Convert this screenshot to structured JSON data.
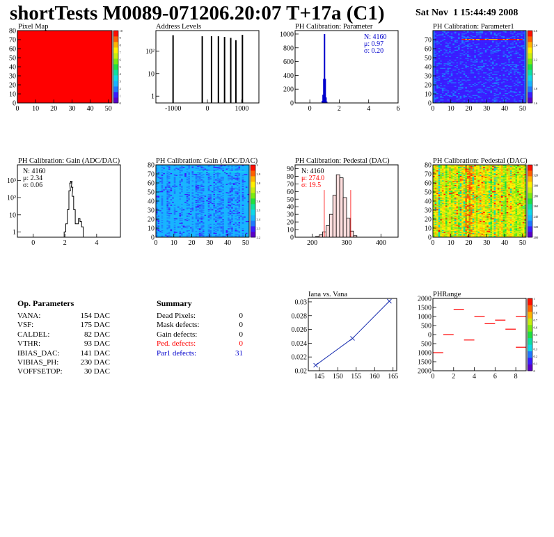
{
  "header": {
    "title": "shortTests M0089-071206.20:07 T+17a (C1)",
    "date": "Sat Nov  1 15:44:49 2008"
  },
  "colors": {
    "red": "#ff0000",
    "blue": "#0000cc",
    "black": "#000000"
  },
  "chart_data": [
    {
      "id": "pixel-map",
      "type": "heatmap",
      "title": "Pixel Map",
      "xlim": [
        0,
        52
      ],
      "ylim": [
        0,
        80
      ],
      "xticks": [
        0,
        10,
        20,
        30,
        40,
        50
      ],
      "yticks": [
        0,
        10,
        20,
        30,
        40,
        50,
        60,
        70,
        80
      ],
      "fill": "uniform red",
      "zticks": [
        "0",
        "1",
        "2",
        "3",
        "4",
        "5",
        "6",
        "7",
        "8",
        "9",
        "10"
      ]
    },
    {
      "id": "address-levels",
      "type": "bar",
      "title": "Address Levels",
      "yscale": "log",
      "xlim": [
        -1500,
        1500
      ],
      "xticks": [
        -1000,
        0,
        1000
      ],
      "ylim": [
        0.5,
        800
      ],
      "yticks": [
        "1",
        "10",
        "10²"
      ],
      "x": [
        -1000,
        -150,
        120,
        320,
        500,
        680,
        830,
        1020
      ],
      "values": [
        500,
        450,
        450,
        450,
        420,
        380,
        300,
        520
      ]
    },
    {
      "id": "ph-parameter",
      "type": "bar",
      "title": "PH Calibration: Parameter",
      "xlim": [
        -1,
        6
      ],
      "xticks": [
        0,
        2,
        4,
        6
      ],
      "ylim": [
        0,
        1050
      ],
      "yticks": [
        0,
        200,
        400,
        600,
        800,
        1000
      ],
      "x": [
        0.8,
        0.85,
        0.9,
        0.95,
        1.0,
        1.05,
        1.1,
        1.15,
        1.2,
        3.3
      ],
      "values": [
        5,
        30,
        120,
        350,
        1000,
        350,
        80,
        20,
        5,
        3
      ],
      "stats": {
        "n": "N: 4160",
        "mean": "μ: 0.97",
        "sigma": "σ: 0.20"
      }
    },
    {
      "id": "ph-parameter1",
      "type": "heatmap",
      "title": "PH Calibration: Parameter1",
      "xlim": [
        0,
        52
      ],
      "ylim": [
        0,
        80
      ],
      "xticks": [
        0,
        10,
        20,
        30,
        40,
        50
      ],
      "yticks": [
        0,
        10,
        20,
        30,
        40,
        50,
        60,
        70
      ],
      "zticks": [
        "1.6",
        "1.8",
        "2",
        "2.2",
        "2.4",
        "2.6"
      ]
    },
    {
      "id": "ph-gain",
      "type": "line",
      "title": "PH Calibration: Gain (ADC/DAC)",
      "yscale": "log",
      "xlim": [
        -1,
        5.5
      ],
      "xticks": [
        0,
        2,
        4
      ],
      "ylim": [
        0.5,
        8000
      ],
      "yticks": [
        "1",
        "10",
        "10²",
        "10³"
      ],
      "x": [
        2.0,
        2.1,
        2.2,
        2.3,
        2.35,
        2.4,
        2.45,
        2.5,
        2.6,
        2.7,
        2.8,
        2.9,
        3.0,
        3.1
      ],
      "values": [
        1,
        3,
        20,
        250,
        700,
        900,
        400,
        120,
        20,
        3,
        3,
        6,
        4,
        2
      ],
      "stats": {
        "n": "N: 4160",
        "mean": "μ: 2.34",
        "sigma": "σ: 0.06"
      }
    },
    {
      "id": "ph-gain-map",
      "type": "heatmap",
      "title": "PH Calibration: Gain (ADC/DAC)",
      "xlim": [
        0,
        52
      ],
      "ylim": [
        0,
        80
      ],
      "xticks": [
        0,
        10,
        20,
        30,
        40,
        50
      ],
      "yticks": [
        0,
        10,
        20,
        30,
        40,
        50,
        60,
        70,
        80
      ],
      "zticks": [
        "2.2",
        "2.3",
        "2.4",
        "2.5",
        "2.6",
        "2.7",
        "2.8",
        "2.9",
        "3"
      ]
    },
    {
      "id": "ph-pedestal",
      "type": "bar",
      "title": "PH Calibration: Pedestal (DAC)",
      "xlim": [
        150,
        450
      ],
      "xticks": [
        200,
        300,
        400
      ],
      "ylim": [
        0,
        95
      ],
      "yticks": [
        0,
        10,
        20,
        30,
        40,
        50,
        60,
        70,
        80,
        90
      ],
      "x": [
        215,
        225,
        235,
        245,
        255,
        265,
        275,
        285,
        295,
        305,
        315,
        325
      ],
      "values": [
        1,
        3,
        7,
        15,
        30,
        55,
        82,
        78,
        52,
        25,
        8,
        2
      ],
      "stats": {
        "n": "N: 4160",
        "mean": "μ: 274.0",
        "sigma": "σ: 19.5"
      }
    },
    {
      "id": "ph-pedestal-map",
      "type": "heatmap",
      "title": "PH Calibration: Pedestal (DAC)",
      "xlim": [
        0,
        52
      ],
      "ylim": [
        0,
        80
      ],
      "xticks": [
        0,
        10,
        20,
        30,
        40,
        50
      ],
      "yticks": [
        0,
        10,
        20,
        30,
        40,
        50,
        60,
        70,
        80
      ],
      "zticks": [
        "200",
        "220",
        "240",
        "260",
        "280",
        "300",
        "320",
        "340"
      ]
    },
    {
      "id": "iana-vana",
      "type": "line",
      "title": "Iana vs. Vana",
      "xlim": [
        142,
        166
      ],
      "xticks": [
        145,
        150,
        155,
        160,
        165
      ],
      "ylim": [
        0.02,
        0.0305
      ],
      "yticks": [
        "0.02",
        "0.022",
        "0.024",
        "0.026",
        "0.028",
        "0.03"
      ],
      "x": [
        144,
        154,
        164
      ],
      "values": [
        0.0208,
        0.0247,
        0.0301
      ]
    },
    {
      "id": "ph-range",
      "type": "scatter",
      "title": "PHRange",
      "xlim": [
        0,
        9
      ],
      "xticks": [
        0,
        2,
        4,
        6,
        8
      ],
      "ylim": [
        -2000,
        2000
      ],
      "yticks": [
        "2000",
        "1500",
        "1000",
        "500",
        "0",
        "500",
        "1000",
        "1500",
        "2000"
      ],
      "x": [
        0.5,
        1.5,
        2.5,
        3.5,
        4.5,
        5.5,
        6.5,
        7.5,
        8.5
      ],
      "values": [
        -1000,
        0,
        1400,
        -300,
        1000,
        600,
        800,
        300,
        1000
      ],
      "extra": [
        {
          "x": 8.5,
          "value": -700
        }
      ],
      "zticks": [
        "0",
        "0.1",
        "0.2",
        "0.3",
        "0.4",
        "0.5",
        "0.6",
        "0.7",
        "0.8",
        "0.9",
        "1"
      ]
    }
  ],
  "op_params": {
    "title": "Op. Parameters",
    "rows": [
      {
        "k": "VANA:",
        "v": "154 DAC"
      },
      {
        "k": "VSF:",
        "v": "175 DAC"
      },
      {
        "k": "CALDEL:",
        "v": "82 DAC"
      },
      {
        "k": "VTHR:",
        "v": "93 DAC"
      },
      {
        "k": "IBIAS_DAC:",
        "v": "141 DAC"
      },
      {
        "k": "VIBIAS_PH:",
        "v": "230 DAC"
      },
      {
        "k": "VOFFSETOP:",
        "v": "30 DAC"
      }
    ]
  },
  "summary": {
    "title": "Summary",
    "rows": [
      {
        "k": "Dead Pixels:",
        "v": "0",
        "color": "#000000"
      },
      {
        "k": "Mask defects:",
        "v": "0",
        "color": "#000000"
      },
      {
        "k": "Gain defects:",
        "v": "0",
        "color": "#000000"
      },
      {
        "k": "Ped. defects:",
        "v": "0",
        "color": "#ff0000"
      },
      {
        "k": "Par1 defects:",
        "v": "31",
        "color": "#0000cc"
      }
    ]
  }
}
